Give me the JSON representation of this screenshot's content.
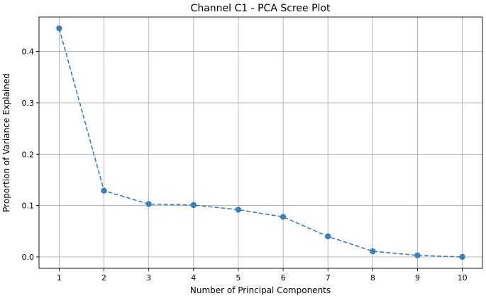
{
  "chart_data": {
    "type": "line",
    "title": "Channel C1 - PCA Scree Plot",
    "xlabel": "Number of Principal Components",
    "ylabel": "Proportion of Variance Explained",
    "x": [
      1,
      2,
      3,
      4,
      5,
      6,
      7,
      8,
      9,
      10
    ],
    "series": [
      {
        "values": [
          0.445,
          0.129,
          0.103,
          0.101,
          0.092,
          0.078,
          0.04,
          0.011,
          0.003,
          0.0
        ],
        "color": "#3d7eb5",
        "line_style": "dashed",
        "marker": "circle"
      }
    ],
    "xticks": [
      1,
      2,
      3,
      4,
      5,
      6,
      7,
      8,
      9,
      10
    ],
    "yticks": [
      0.0,
      0.1,
      0.2,
      0.3,
      0.4
    ],
    "ytick_labels": [
      "0.0",
      "0.1",
      "0.2",
      "0.3",
      "0.4"
    ],
    "xlim": [
      0.55,
      10.45
    ],
    "ylim": [
      -0.0222,
      0.4672
    ],
    "grid": true,
    "legend": false
  }
}
